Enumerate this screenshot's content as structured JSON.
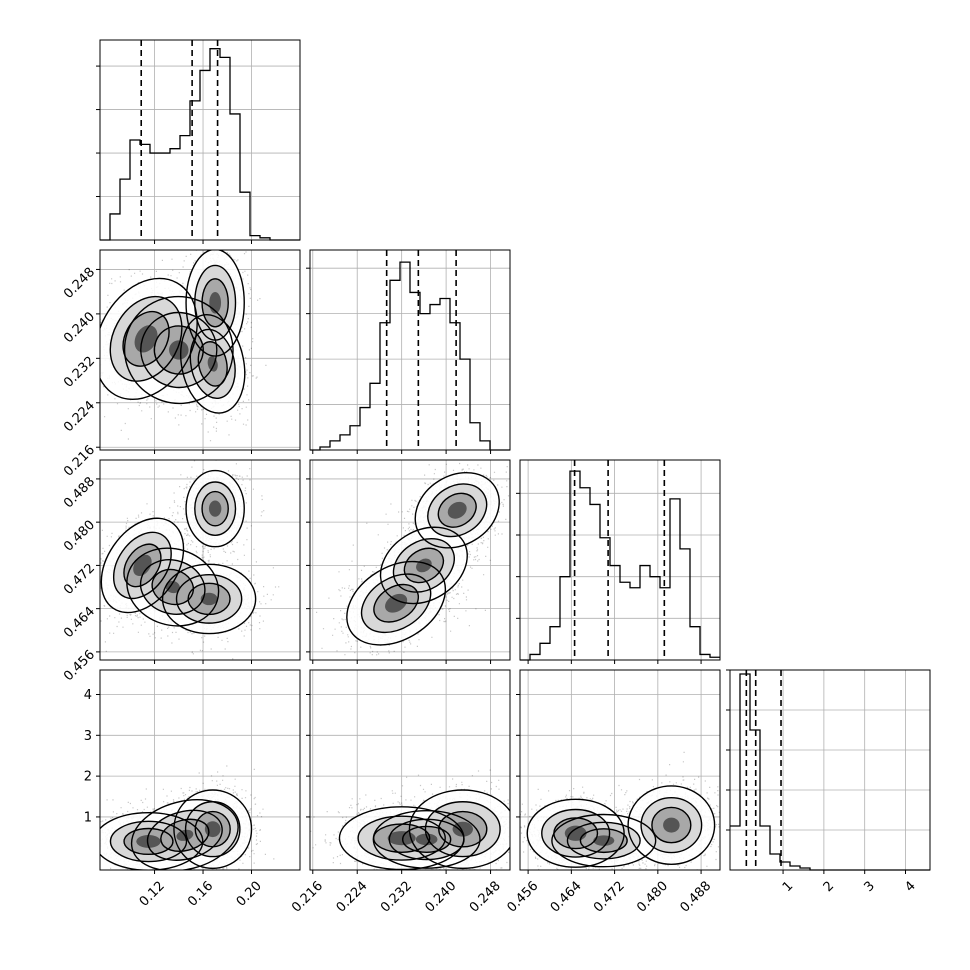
{
  "chart_data": {
    "type": "corner",
    "parameters": [
      {
        "name": "",
        "range": [
          0.075,
          0.24
        ],
        "ticks": [
          "0.12",
          "0.16",
          "0.20"
        ],
        "tick_values": [
          0.12,
          0.16,
          0.2
        ],
        "quantiles": [
          0.109,
          0.151,
          0.172
        ],
        "hist": {
          "start": 0.075,
          "step": 0.00825,
          "counts": [
            0,
            12,
            28,
            46,
            44,
            40,
            40,
            42,
            48,
            64,
            78,
            88,
            84,
            58,
            22,
            2,
            1,
            0,
            0,
            0
          ]
        }
      },
      {
        "name": "",
        "range": [
          0.2155,
          0.2515
        ],
        "ticks": [
          "0.216",
          "0.224",
          "0.232",
          "0.240",
          "0.248"
        ],
        "tick_values": [
          0.216,
          0.224,
          0.232,
          0.24,
          0.248
        ],
        "quantiles": [
          0.2293,
          0.235,
          0.2418
        ],
        "hist": {
          "start": 0.2155,
          "step": 0.0018,
          "counts": [
            0,
            1,
            3,
            5,
            8,
            14,
            22,
            42,
            56,
            62,
            52,
            45,
            48,
            50,
            42,
            30,
            9,
            3,
            0,
            0
          ]
        }
      },
      {
        "name": "",
        "range": [
          0.4545,
          0.4915
        ],
        "ticks": [
          "0.456",
          "0.464",
          "0.472",
          "0.480",
          "0.488"
        ],
        "tick_values": [
          0.456,
          0.464,
          0.472,
          0.48,
          0.488
        ],
        "quantiles": [
          0.4646,
          0.4708,
          0.4812
        ],
        "hist": {
          "start": 0.4545,
          "step": 0.00185,
          "counts": [
            0,
            2,
            6,
            12,
            30,
            68,
            62,
            56,
            44,
            34,
            28,
            26,
            34,
            30,
            26,
            58,
            40,
            12,
            2,
            1
          ]
        }
      },
      {
        "name": "",
        "range": [
          -0.3,
          4.6
        ],
        "ticks": [
          "1",
          "2",
          "3",
          "4"
        ],
        "tick_values": [
          1,
          2,
          3,
          4
        ],
        "quantiles": [
          0.1,
          0.33,
          0.95
        ],
        "hist": {
          "start": -0.3,
          "step": 0.245,
          "counts": [
            22,
            98,
            70,
            22,
            8,
            4,
            2,
            1,
            0,
            0,
            0,
            0,
            0,
            0,
            0,
            0,
            0,
            0,
            0,
            0
          ]
        }
      }
    ],
    "hist_yticks": [
      {
        "ticks": [
          20,
          40,
          60,
          80
        ],
        "ymax": 92
      },
      {
        "ticks": [
          15,
          30,
          45,
          60
        ],
        "ymax": 66
      },
      {
        "ticks": [
          15,
          30,
          45,
          60
        ],
        "ymax": 72
      },
      {
        "ticks": [
          20,
          40,
          60,
          80,
          100
        ],
        "ymax": 100
      }
    ],
    "y_ticks": {
      "1": [
        "0.216",
        "0.224",
        "0.232",
        "0.240",
        "0.248"
      ],
      "2": [
        "0.456",
        "0.464",
        "0.472",
        "0.480",
        "0.488"
      ],
      "3": [
        "1",
        "2",
        "3",
        "4"
      ]
    },
    "y_tick_values": {
      "1": [
        0.216,
        0.224,
        0.232,
        0.24,
        0.248
      ],
      "2": [
        0.456,
        0.464,
        0.472,
        0.48,
        0.488
      ],
      "3": [
        1,
        2,
        3,
        4
      ]
    },
    "panels_2d": [
      {
        "x": 0,
        "y": 1,
        "blobs": [
          {
            "cx": 0.113,
            "cy": 0.2355,
            "sx": 0.012,
            "sy": 0.0036,
            "w": 1.0,
            "rot": -0.5
          },
          {
            "cx": 0.14,
            "cy": 0.2335,
            "sx": 0.014,
            "sy": 0.003,
            "w": 0.8,
            "rot": -0.3
          },
          {
            "cx": 0.168,
            "cy": 0.231,
            "sx": 0.008,
            "sy": 0.0028,
            "w": 0.7,
            "rot": 0.2
          },
          {
            "cx": 0.17,
            "cy": 0.242,
            "sx": 0.0075,
            "sy": 0.003,
            "w": 0.9,
            "rot": 0.0
          }
        ]
      },
      {
        "x": 0,
        "y": 2,
        "blobs": [
          {
            "cx": 0.11,
            "cy": 0.472,
            "sx": 0.009,
            "sy": 0.003,
            "w": 1.0,
            "rot": -0.6
          },
          {
            "cx": 0.135,
            "cy": 0.468,
            "sx": 0.012,
            "sy": 0.0022,
            "w": 0.7,
            "rot": -0.3
          },
          {
            "cx": 0.165,
            "cy": 0.4658,
            "sx": 0.012,
            "sy": 0.002,
            "w": 0.8,
            "rot": 0.0
          },
          {
            "cx": 0.17,
            "cy": 0.4825,
            "sx": 0.0075,
            "sy": 0.0022,
            "w": 0.95,
            "rot": 0.0
          }
        ]
      },
      {
        "x": 1,
        "y": 2,
        "blobs": [
          {
            "cx": 0.231,
            "cy": 0.465,
            "sx": 0.003,
            "sy": 0.0021,
            "w": 1.0,
            "rot": 0.55
          },
          {
            "cx": 0.236,
            "cy": 0.472,
            "sx": 0.0026,
            "sy": 0.002,
            "w": 0.8,
            "rot": 0.55
          },
          {
            "cx": 0.242,
            "cy": 0.4822,
            "sx": 0.0025,
            "sy": 0.002,
            "w": 1.0,
            "rot": 0.55
          }
        ]
      },
      {
        "x": 0,
        "y": 3,
        "blobs": [
          {
            "cx": 0.115,
            "cy": 0.4,
            "sx": 0.014,
            "sy": 0.22,
            "w": 1.0,
            "rot": 0.0
          },
          {
            "cx": 0.145,
            "cy": 0.55,
            "sx": 0.014,
            "sy": 0.26,
            "w": 0.7,
            "rot": 0.25
          },
          {
            "cx": 0.168,
            "cy": 0.7,
            "sx": 0.01,
            "sy": 0.3,
            "w": 0.9,
            "rot": 0.0
          }
        ]
      },
      {
        "x": 1,
        "y": 3,
        "blobs": [
          {
            "cx": 0.232,
            "cy": 0.48,
            "sx": 0.0035,
            "sy": 0.24,
            "w": 1.0,
            "rot": 0.0
          },
          {
            "cx": 0.2365,
            "cy": 0.45,
            "sx": 0.003,
            "sy": 0.22,
            "w": 0.9,
            "rot": 0.0
          },
          {
            "cx": 0.243,
            "cy": 0.7,
            "sx": 0.003,
            "sy": 0.3,
            "w": 0.85,
            "rot": 0.0
          }
        ]
      },
      {
        "x": 2,
        "y": 3,
        "blobs": [
          {
            "cx": 0.4648,
            "cy": 0.6,
            "sx": 0.0028,
            "sy": 0.26,
            "w": 1.0,
            "rot": 0.0
          },
          {
            "cx": 0.47,
            "cy": 0.42,
            "sx": 0.003,
            "sy": 0.2,
            "w": 0.9,
            "rot": 0.0
          },
          {
            "cx": 0.4825,
            "cy": 0.8,
            "sx": 0.0025,
            "sy": 0.3,
            "w": 0.85,
            "rot": 0.0
          }
        ]
      }
    ],
    "grid": true
  }
}
